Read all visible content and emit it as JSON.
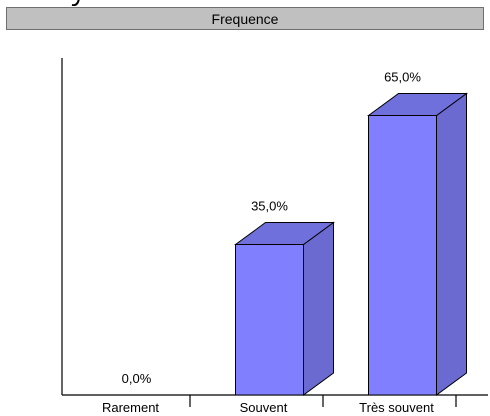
{
  "chart_data": {
    "type": "bar",
    "title": "Frequence",
    "categories": [
      "Rarement",
      "Souvent",
      "Très souvent"
    ],
    "values": [
      0.0,
      35.0,
      65.0
    ],
    "value_labels": [
      "0,0%",
      "35,0%",
      "65,0%"
    ],
    "ylim": [
      0,
      100
    ],
    "grid": false,
    "legend": "none",
    "bar_style": "3d"
  },
  "colors": {
    "bar_front": "#8080ff",
    "bar_top": "#7070dd",
    "bar_side": "#6a6ad0",
    "axis": "#000000",
    "title_bar": "#c0c0c0"
  }
}
